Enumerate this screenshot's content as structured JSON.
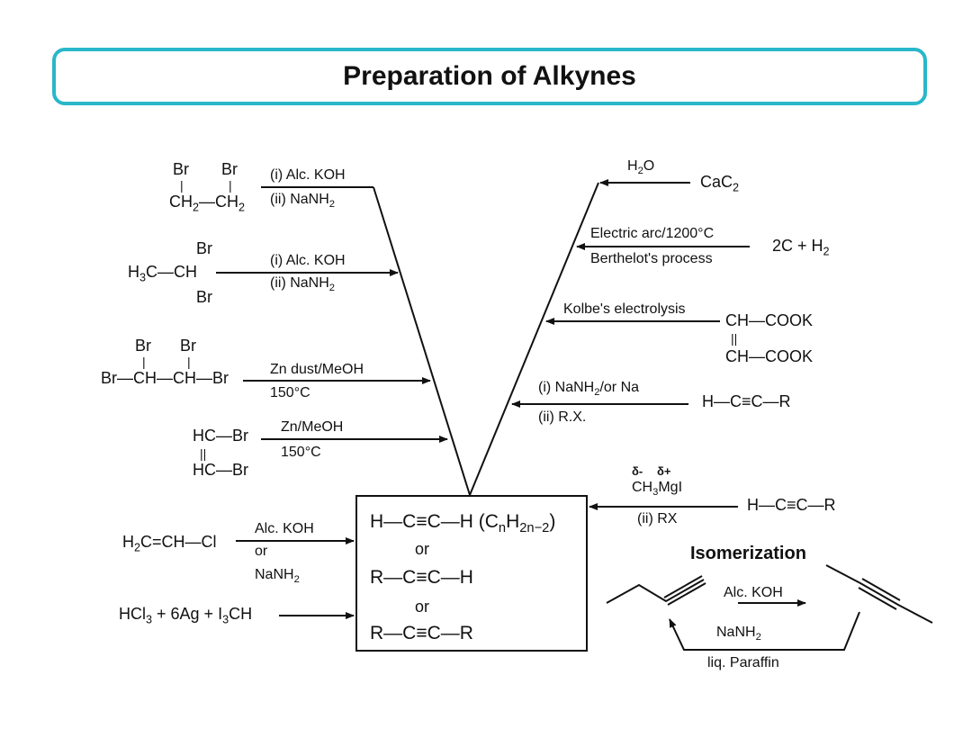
{
  "title": "Preparation of Alkynes",
  "center": {
    "line1": "H—C≡C—H (C",
    "line1_sub1": "n",
    "line1_mid": "H",
    "line1_sub2": "2n−2",
    "line1_end": ")",
    "or1": "or",
    "line2": "R—C≡C—H",
    "or2": "or",
    "line3": "R—C≡C—R"
  },
  "left": {
    "r1": {
      "br1": "Br",
      "br2": "Br",
      "bar1": "|",
      "bar2": "|",
      "f1": "CH",
      "s1": "2",
      "f2": "—CH",
      "s2": "2",
      "c1": "(i) Alc. KOH",
      "c2": "(ii) NaNH",
      "c2s": "2"
    },
    "r2": {
      "br_top": "Br",
      "br_bot": "Br",
      "f1": "H",
      "s1": "3",
      "f2": "C—CH",
      "c1": "(i) Alc. KOH",
      "c2": "(ii) NaNH",
      "c2s": "2"
    },
    "r3": {
      "br1": "Br",
      "br2": "Br",
      "bar1": "|",
      "bar2": "|",
      "f": "Br—CH—CH—Br",
      "c1": "Zn dust/MeOH",
      "c2": "150°C"
    },
    "r4": {
      "top": "HC—Br",
      "dbl": "||",
      "bot": "HC—Br",
      "c1": "Zn/MeOH",
      "c2": "150°C"
    },
    "r5": {
      "f1": "H",
      "s1": "2",
      "f2": "C=CH—Cl",
      "c1": "Alc. KOH",
      "c2": "or",
      "c3": "NaNH",
      "c3s": "2"
    },
    "r6": {
      "f1": "HCl",
      "s1": "3",
      "f2": " + 6Ag + I",
      "s2": "3",
      "f3": "CH"
    }
  },
  "right": {
    "r1": {
      "c1": "H",
      "c1s": "2",
      "c1e": "O",
      "f": "CaC",
      "fs": "2"
    },
    "r2": {
      "c1": "Electric arc/1200°C",
      "c2": "Berthelot's process",
      "f": "2C + H",
      "fs": "2"
    },
    "r3": {
      "c1": "Kolbe's electrolysis",
      "f1": "CH—COOK",
      "dbl": "||",
      "f2": "CH—COOK"
    },
    "r4": {
      "c1": "(i) NaNH",
      "c1s": "2",
      "c1e": "/or Na",
      "c2": "(ii) R.X.",
      "f": "H—C≡C—R"
    },
    "r5": {
      "d1": "δ-",
      "d2": "δ+",
      "c1": "CH",
      "c1s": "3",
      "c1e": "MgI",
      "c2": "(ii) RX",
      "f": "H—C≡C—R"
    }
  },
  "isomerization": {
    "heading": "Isomerization",
    "c1": "Alc. KOH",
    "c2": "NaNH",
    "c2s": "2",
    "c3": "liq. Paraffin"
  },
  "colors": {
    "accent": "#29b7c9",
    "ink": "#111111"
  }
}
